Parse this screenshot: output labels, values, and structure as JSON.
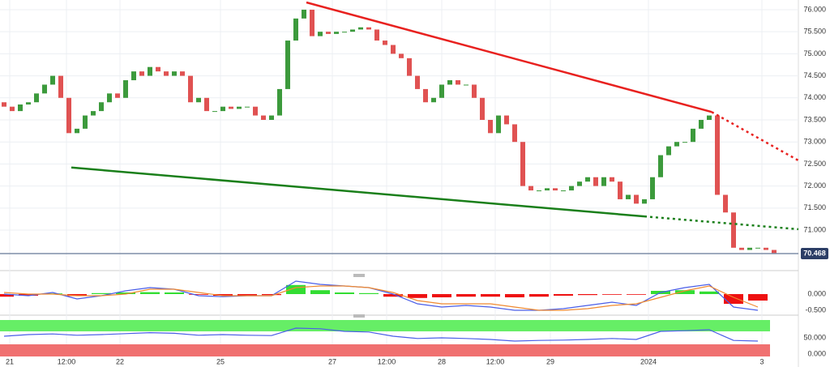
{
  "chart_data": [
    {
      "type": "candlestick",
      "xlim": [
        -0.5,
        98
      ],
      "xticks": [
        {
          "value": 0.7,
          "label": "21"
        },
        {
          "value": 7.7,
          "label": "12:00"
        },
        {
          "value": 14.3,
          "label": "22"
        },
        {
          "value": 26.7,
          "label": "25"
        },
        {
          "value": 40.5,
          "label": "27"
        },
        {
          "value": 47.2,
          "label": "12:00"
        },
        {
          "value": 54,
          "label": "28"
        },
        {
          "value": 60.6,
          "label": "12:00"
        },
        {
          "value": 67.4,
          "label": "29"
        },
        {
          "value": 79.5,
          "label": "2024"
        },
        {
          "value": 93.5,
          "label": "3"
        }
      ],
      "ylim": [
        70.155,
        76.22
      ],
      "yticks": [
        {
          "value": 71,
          "label": "71.000"
        },
        {
          "value": 71.5,
          "label": "71.500"
        },
        {
          "value": 72,
          "label": "72.000"
        },
        {
          "value": 72.5,
          "label": "72.500"
        },
        {
          "value": 73,
          "label": "73.000"
        },
        {
          "value": 73.5,
          "label": "73.500"
        },
        {
          "value": 74,
          "label": "74.000"
        },
        {
          "value": 74.5,
          "label": "74.500"
        },
        {
          "value": 75,
          "label": "75.000"
        },
        {
          "value": 75.5,
          "label": "75.500"
        },
        {
          "value": 76,
          "label": "76.000"
        }
      ],
      "grid": true,
      "up_color": "#3c9a3c",
      "down_color": "#e05252",
      "open": [
        73.9,
        73.8,
        73.7,
        73.85,
        73.9,
        74.1,
        74.3,
        74.5,
        74.0,
        73.2,
        73.3,
        73.6,
        73.7,
        73.9,
        74.1,
        74.0,
        74.4,
        74.6,
        74.5,
        74.7,
        74.6,
        74.5,
        74.6,
        74.5,
        73.9,
        74.0,
        73.7,
        73.7,
        73.8,
        73.75,
        73.8,
        73.8,
        73.6,
        73.5,
        73.6,
        74.2,
        75.3,
        75.8,
        76.0,
        75.4,
        75.5,
        75.45,
        75.5,
        75.5,
        75.55,
        75.6,
        75.55,
        75.3,
        75.2,
        75.0,
        74.9,
        74.5,
        74.2,
        73.9,
        74.0,
        74.3,
        74.4,
        74.3,
        74.3,
        74.0,
        73.5,
        73.2,
        73.6,
        73.4,
        73.0,
        72.0,
        71.9,
        71.9,
        71.95,
        71.9,
        71.9,
        72.0,
        72.1,
        72.2,
        72.0,
        72.2,
        72.1,
        71.7,
        71.8,
        71.6,
        71.7,
        72.2,
        72.7,
        72.9,
        73.0,
        73.0,
        73.3,
        73.5,
        73.6,
        71.8,
        71.4,
        70.6,
        70.55,
        70.6,
        70.6,
        70.55
      ],
      "close": [
        73.8,
        73.7,
        73.85,
        73.9,
        74.1,
        74.3,
        74.5,
        74.0,
        73.2,
        73.3,
        73.6,
        73.7,
        73.9,
        74.1,
        74.0,
        74.4,
        74.6,
        74.5,
        74.7,
        74.6,
        74.5,
        74.6,
        74.5,
        73.9,
        74.0,
        73.7,
        73.7,
        73.8,
        73.75,
        73.8,
        73.8,
        73.6,
        73.5,
        73.6,
        74.2,
        75.3,
        75.8,
        76.0,
        75.4,
        75.5,
        75.45,
        75.5,
        75.5,
        75.55,
        75.6,
        75.55,
        75.3,
        75.2,
        75.0,
        74.9,
        74.5,
        74.2,
        73.9,
        74.0,
        74.3,
        74.4,
        74.3,
        74.3,
        74.0,
        73.5,
        73.2,
        73.6,
        73.4,
        73.0,
        72.0,
        71.9,
        71.9,
        71.95,
        71.9,
        71.9,
        72.0,
        72.1,
        72.2,
        72.0,
        72.2,
        72.1,
        71.7,
        71.8,
        71.6,
        71.7,
        72.2,
        72.7,
        72.9,
        73.0,
        73.0,
        73.3,
        73.5,
        73.6,
        71.8,
        71.4,
        70.6,
        70.55,
        70.6,
        70.6,
        70.55,
        70.47
      ],
      "trendlines": [
        {
          "color": "#e8211f",
          "points": [
            [
              37.3,
              76.165
            ],
            [
              87.3,
              73.68
            ],
            [
              98,
              72.58
            ]
          ]
        },
        {
          "color": "#1a7f1a",
          "points": [
            [
              8.3,
              72.42
            ],
            [
              79,
              71.31
            ],
            [
              98,
              71.02
            ]
          ]
        }
      ],
      "last_price": 70.468,
      "last_price_color": "#2c3e66"
    },
    {
      "type": "macd",
      "x": [
        0,
        3,
        6,
        9,
        12,
        15,
        18,
        21,
        24,
        27,
        30,
        33,
        36,
        39,
        42,
        45,
        48,
        51,
        54,
        57,
        60,
        63,
        66,
        69,
        72,
        75,
        78,
        81,
        84,
        87,
        90,
        93
      ],
      "xlim": [
        -0.5,
        98
      ],
      "ylim": [
        -0.55,
        0.575
      ],
      "yticks": [
        {
          "value": 0,
          "label": "0.000"
        },
        {
          "value": -0.5,
          "label": "-0.500"
        }
      ],
      "hist_up_color": "#33dd33",
      "hist_down_color": "#ee1111",
      "histogram": [
        -0.08,
        -0.05,
        0.02,
        -0.06,
        0.03,
        0.05,
        0.06,
        0.05,
        -0.02,
        -0.05,
        -0.05,
        -0.03,
        0.28,
        0.12,
        0.05,
        0.03,
        -0.08,
        -0.12,
        -0.1,
        -0.08,
        -0.08,
        -0.1,
        -0.08,
        -0.05,
        -0.03,
        -0.02,
        -0.02,
        0.1,
        0.12,
        0.08,
        -0.3,
        -0.2
      ],
      "series": [
        {
          "color": "#4a5ee8",
          "values": [
            0,
            -0.05,
            0.05,
            -0.15,
            -0.05,
            0.1,
            0.2,
            0.15,
            -0.05,
            -0.08,
            -0.05,
            -0.05,
            0.4,
            0.3,
            0.25,
            0.2,
            0,
            -0.3,
            -0.4,
            -0.35,
            -0.4,
            -0.5,
            -0.5,
            -0.45,
            -0.35,
            -0.25,
            -0.35,
            0.05,
            0.2,
            0.3,
            -0.4,
            -0.5
          ]
        },
        {
          "color": "#f08a30",
          "values": [
            0.05,
            0,
            0,
            -0.05,
            -0.05,
            0,
            0.15,
            0.15,
            0.05,
            -0.05,
            -0.05,
            -0.05,
            0.2,
            0.25,
            0.25,
            0.2,
            0.05,
            -0.2,
            -0.3,
            -0.3,
            -0.3,
            -0.4,
            -0.5,
            -0.5,
            -0.45,
            -0.35,
            -0.3,
            -0.1,
            0.1,
            0.25,
            -0.1,
            -0.4
          ]
        }
      ]
    },
    {
      "type": "oscillator",
      "x": [
        0,
        3,
        6,
        9,
        12,
        15,
        18,
        21,
        24,
        27,
        30,
        33,
        36,
        39,
        42,
        45,
        48,
        51,
        54,
        57,
        60,
        63,
        66,
        69,
        72,
        75,
        78,
        81,
        84,
        87,
        90,
        93
      ],
      "xlim": [
        -0.5,
        98
      ],
      "ylim": [
        -7.5,
        105
      ],
      "yticks": [
        {
          "value": 0,
          "label": "0.000"
        },
        {
          "value": 50,
          "label": "50.000"
        }
      ],
      "bands": [
        {
          "range": [
            70,
            105
          ],
          "color": "#66ee66"
        },
        {
          "range": [
            -7.5,
            30
          ],
          "color": "#f07070"
        }
      ],
      "band_end": 94.5,
      "series": [
        {
          "color": "#4a5ee8",
          "values": [
            55,
            60,
            62,
            58,
            60,
            63,
            66,
            64,
            58,
            60,
            58,
            57,
            80,
            78,
            70,
            68,
            55,
            48,
            50,
            48,
            45,
            40,
            42,
            43,
            45,
            48,
            45,
            70,
            72,
            75,
            42,
            40
          ]
        }
      ]
    }
  ]
}
